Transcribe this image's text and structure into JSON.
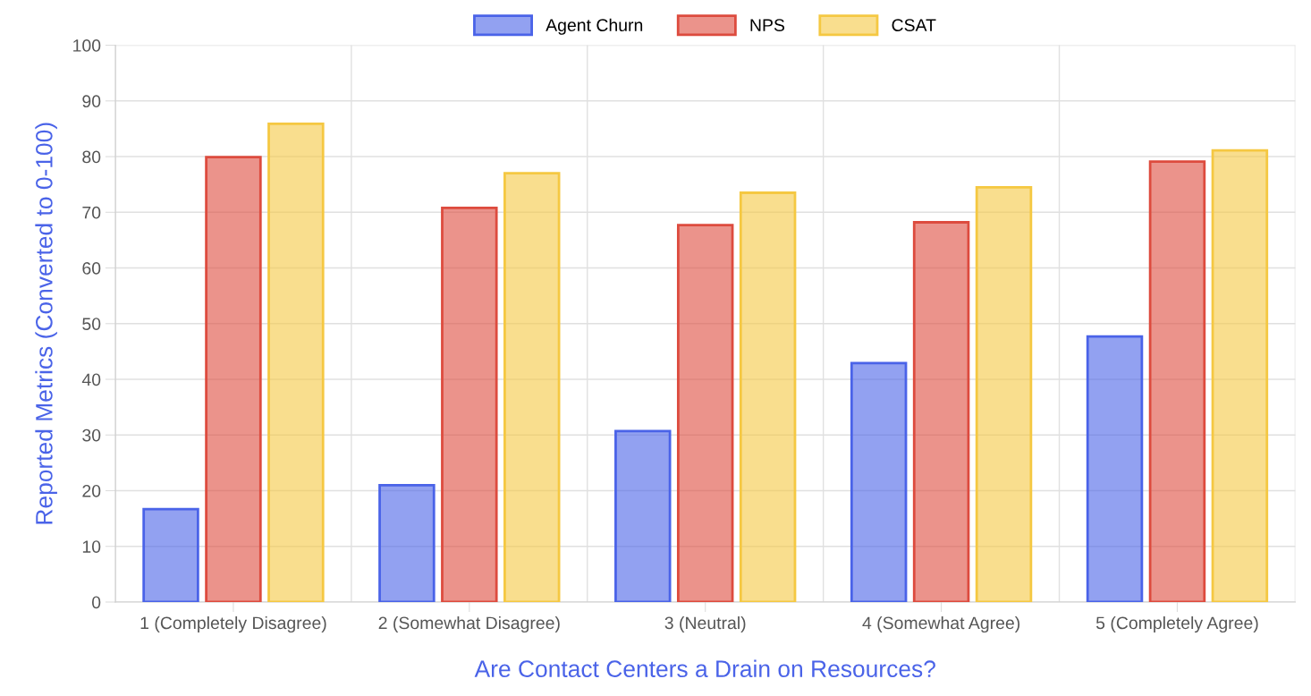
{
  "chart_data": {
    "type": "bar",
    "xlabel": "Are Contact Centers a Drain on Resources?",
    "ylabel": "Reported Metrics (Converted to 0-100)",
    "categories": [
      "1 (Completely Disagree)",
      "2 (Somewhat Disagree)",
      "3 (Neutral)",
      "4 (Somewhat Agree)",
      "5 (Completely Agree)"
    ],
    "series": [
      {
        "name": "Agent Churn",
        "color": "#4a63e8",
        "values": [
          16.7,
          21.0,
          30.7,
          42.9,
          47.7
        ]
      },
      {
        "name": "NPS",
        "color": "#dd4b3e",
        "values": [
          79.9,
          70.8,
          67.7,
          68.2,
          79.1
        ]
      },
      {
        "name": "CSAT",
        "color": "#f5c842",
        "values": [
          85.9,
          77.0,
          73.5,
          74.5,
          81.1
        ]
      }
    ],
    "ylim": [
      0,
      100
    ],
    "yticks": [
      0,
      10,
      20,
      30,
      40,
      50,
      60,
      70,
      80,
      90,
      100
    ],
    "grid": true,
    "legend": "top"
  }
}
